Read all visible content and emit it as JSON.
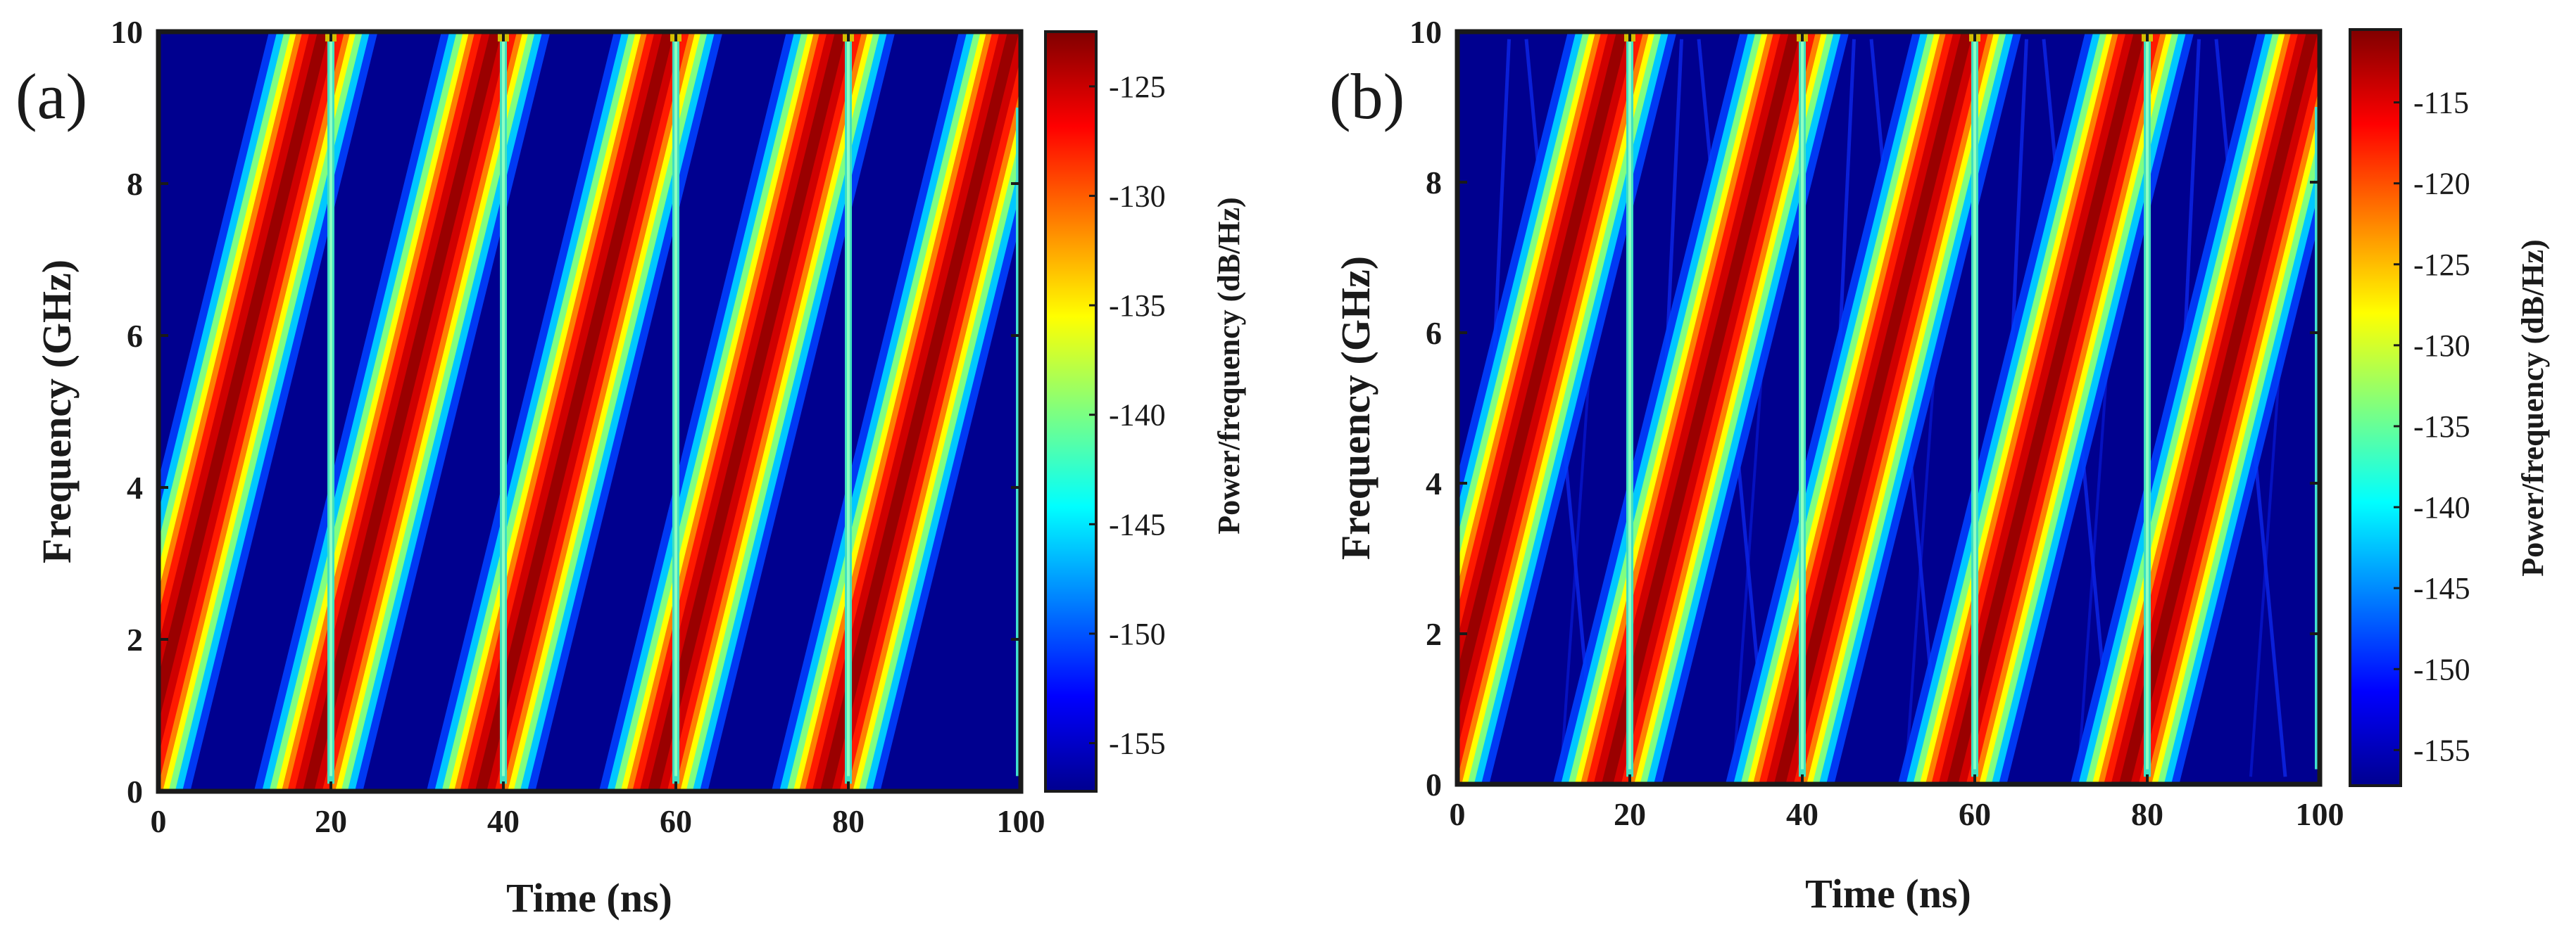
{
  "figure": {
    "description_free": true
  },
  "colormap": {
    "name": "jet",
    "background": "#00008f"
  },
  "chart_data": [
    {
      "type": "heatmap",
      "subtype": "spectrogram",
      "panel_label": "(a)",
      "xlabel": "Time (ns)",
      "ylabel": "Frequency (GHz)",
      "colorbar_label": "Power/frequency (dB/Hz)",
      "xlim": [
        0,
        100
      ],
      "ylim": [
        0,
        10
      ],
      "x_ticks": [
        "0",
        "20",
        "40",
        "60",
        "80",
        "100"
      ],
      "x_tick_values": [
        0,
        20,
        40,
        60,
        80,
        100
      ],
      "y_ticks": [
        "0",
        "2",
        "4",
        "6",
        "8",
        "10"
      ],
      "y_tick_values": [
        0,
        2,
        4,
        6,
        8,
        10
      ],
      "clim": [
        -157.2,
        -122.5
      ],
      "colorbar_ticks": [
        "-125",
        "-130",
        "-135",
        "-140",
        "-145",
        "-150",
        "-155"
      ],
      "colorbar_tick_values": [
        -125,
        -130,
        -135,
        -140,
        -145,
        -150,
        -155
      ],
      "chirp": {
        "period_ns": 20,
        "f_start_ghz": 0.5,
        "f_end_ghz": 9.7,
        "center_offset_ghz": 1.4,
        "periods": 5
      },
      "ghost_lines": false
    },
    {
      "type": "heatmap",
      "subtype": "spectrogram",
      "panel_label": "(b)",
      "xlabel": "Time (ns)",
      "ylabel": "Frequency (GHz)",
      "colorbar_label": "Power/frequency (dB/Hz)",
      "xlim": [
        0,
        100
      ],
      "ylim": [
        0,
        10
      ],
      "x_ticks": [
        "0",
        "20",
        "40",
        "60",
        "80",
        "100"
      ],
      "x_tick_values": [
        0,
        20,
        40,
        60,
        80,
        100
      ],
      "y_ticks": [
        "0",
        "2",
        "4",
        "6",
        "8",
        "10"
      ],
      "y_tick_values": [
        0,
        2,
        4,
        6,
        8,
        10
      ],
      "clim": [
        -157.2,
        -110.5
      ],
      "colorbar_ticks": [
        "-115",
        "-120",
        "-125",
        "-130",
        "-135",
        "-140",
        "-145",
        "-150",
        "-155"
      ],
      "colorbar_tick_values": [
        -115,
        -120,
        -125,
        -130,
        -135,
        -140,
        -145,
        -150,
        -155
      ],
      "chirp": {
        "period_ns": 20,
        "f_start_ghz": 0.5,
        "f_end_ghz": 9.7,
        "center_offset_ghz": 1.4,
        "periods": 5
      },
      "ghost_lines": true
    }
  ]
}
